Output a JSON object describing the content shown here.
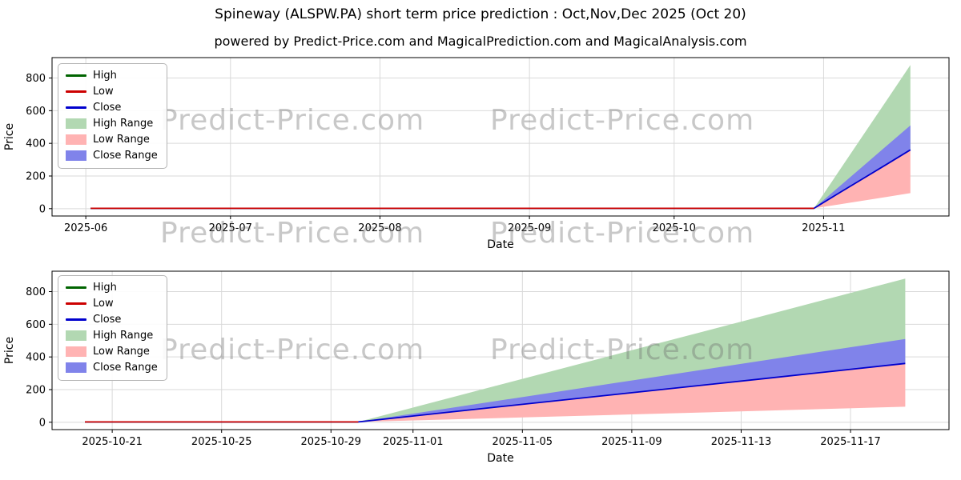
{
  "header": {
    "title": "Spineway (ALSPW.PA) short term price prediction : Oct,Nov,Dec 2025 (Oct 20)",
    "subtitle": "powered by Predict-Price.com and MagicalPrediction.com and MagicalAnalysis.com"
  },
  "watermark": {
    "text": "Predict-Price.com"
  },
  "colors": {
    "grid": "#d9d9d9",
    "frame": "#000000",
    "high_line": "#006400",
    "low_line": "#cc0000",
    "close_line": "#0000cd",
    "high_range": "#b2d8b2",
    "low_range": "#ffb3b3",
    "close_range": "#8083ea"
  },
  "chart_data": [
    {
      "type": "line",
      "title": "",
      "xlabel": "Date",
      "ylabel": "Price",
      "x_unit": "days since 2025-05-25",
      "xlim": [
        0,
        186
      ],
      "ylim": [
        -45,
        925
      ],
      "yticks": [
        0,
        200,
        400,
        600,
        800
      ],
      "xticks": [
        {
          "pos": 7,
          "label": "2025-06"
        },
        {
          "pos": 37,
          "label": "2025-07"
        },
        {
          "pos": 68,
          "label": "2025-08"
        },
        {
          "pos": 99,
          "label": "2025-09"
        },
        {
          "pos": 129,
          "label": "2025-10"
        },
        {
          "pos": 160,
          "label": "2025-11"
        }
      ],
      "prediction_dates": [
        "2025-10-20",
        "2025-10-30",
        "2025-11-04",
        "2025-11-09",
        "2025-11-14",
        "2025-11-19"
      ],
      "bands": [
        {
          "name": "High Range",
          "color": "#b2d8b2",
          "x": [
            148,
            158,
            163,
            168,
            173,
            178
          ],
          "upper": [
            2,
            2,
            222,
            441,
            660,
            880
          ],
          "lower": [
            2,
            2,
            92,
            181,
            270,
            360
          ]
        },
        {
          "name": "Low Range",
          "color": "#ffb3b3",
          "x": [
            148,
            158,
            163,
            168,
            173,
            178
          ],
          "upper": [
            2,
            2,
            92,
            181,
            270,
            360
          ],
          "lower": [
            2,
            2,
            25,
            48,
            71,
            95
          ]
        },
        {
          "name": "Close Range",
          "color": "#8083ea",
          "x": [
            148,
            158,
            163,
            168,
            173,
            178
          ],
          "upper": [
            2,
            2,
            129,
            256,
            383,
            510
          ],
          "lower": [
            2,
            2,
            92,
            181,
            270,
            360
          ]
        }
      ],
      "lines": [
        {
          "name": "High",
          "color": "#006400",
          "x": [
            8,
            158
          ],
          "y": [
            2,
            2
          ]
        },
        {
          "name": "Close",
          "color": "#0000cd",
          "x": [
            8,
            148,
            158,
            163,
            168,
            173,
            178
          ],
          "y": [
            2,
            2,
            2,
            92,
            181,
            270,
            360
          ]
        },
        {
          "name": "Low",
          "color": "#cc0000",
          "x": [
            8,
            158
          ],
          "y": [
            2,
            2
          ]
        }
      ],
      "legend": [
        {
          "label": "High",
          "type": "line",
          "color": "#006400"
        },
        {
          "label": "Low",
          "type": "line",
          "color": "#cc0000"
        },
        {
          "label": "Close",
          "type": "line",
          "color": "#0000cd"
        },
        {
          "label": "High Range",
          "type": "patch",
          "color": "#b2d8b2"
        },
        {
          "label": "Low Range",
          "type": "patch",
          "color": "#ffb3b3"
        },
        {
          "label": "Close Range",
          "type": "patch",
          "color": "#8083ea"
        }
      ]
    },
    {
      "type": "line",
      "title": "",
      "xlabel": "Date",
      "ylabel": "Price",
      "x_unit": "days since 2025-10-20",
      "xlim": [
        -1.2,
        31.6
      ],
      "ylim": [
        -45,
        925
      ],
      "yticks": [
        0,
        200,
        400,
        600,
        800
      ],
      "xticks": [
        {
          "pos": 1,
          "label": "2025-10-21"
        },
        {
          "pos": 5,
          "label": "2025-10-25"
        },
        {
          "pos": 9,
          "label": "2025-10-29"
        },
        {
          "pos": 12,
          "label": "2025-11-01"
        },
        {
          "pos": 16,
          "label": "2025-11-05"
        },
        {
          "pos": 20,
          "label": "2025-11-09"
        },
        {
          "pos": 24,
          "label": "2025-11-13"
        },
        {
          "pos": 28,
          "label": "2025-11-17"
        }
      ],
      "prediction_dates": [
        "2025-10-20",
        "2025-10-30",
        "2025-11-04",
        "2025-11-09",
        "2025-11-14",
        "2025-11-19"
      ],
      "bands": [
        {
          "name": "High Range",
          "color": "#b2d8b2",
          "x": [
            0,
            10,
            15,
            20,
            25,
            30
          ],
          "upper": [
            2,
            2,
            222,
            441,
            660,
            880
          ],
          "lower": [
            2,
            2,
            92,
            181,
            270,
            360
          ]
        },
        {
          "name": "Low Range",
          "color": "#ffb3b3",
          "x": [
            0,
            10,
            15,
            20,
            25,
            30
          ],
          "upper": [
            2,
            2,
            92,
            181,
            270,
            360
          ],
          "lower": [
            2,
            2,
            25,
            48,
            71,
            95
          ]
        },
        {
          "name": "Close Range",
          "color": "#8083ea",
          "x": [
            0,
            10,
            15,
            20,
            25,
            30
          ],
          "upper": [
            2,
            2,
            129,
            256,
            383,
            510
          ],
          "lower": [
            2,
            2,
            92,
            181,
            270,
            360
          ]
        }
      ],
      "lines": [
        {
          "name": "High",
          "color": "#006400",
          "x": [
            0,
            10
          ],
          "y": [
            2,
            2
          ]
        },
        {
          "name": "Close",
          "color": "#0000cd",
          "x": [
            0,
            10,
            15,
            20,
            25,
            30
          ],
          "y": [
            2,
            2,
            92,
            181,
            270,
            360
          ]
        },
        {
          "name": "Low",
          "color": "#cc0000",
          "x": [
            0,
            10
          ],
          "y": [
            2,
            2
          ]
        }
      ],
      "legend": [
        {
          "label": "High",
          "type": "line",
          "color": "#006400"
        },
        {
          "label": "Low",
          "type": "line",
          "color": "#cc0000"
        },
        {
          "label": "Close",
          "type": "line",
          "color": "#0000cd"
        },
        {
          "label": "High Range",
          "type": "patch",
          "color": "#b2d8b2"
        },
        {
          "label": "Low Range",
          "type": "patch",
          "color": "#ffb3b3"
        },
        {
          "label": "Close Range",
          "type": "patch",
          "color": "#8083ea"
        }
      ]
    }
  ]
}
